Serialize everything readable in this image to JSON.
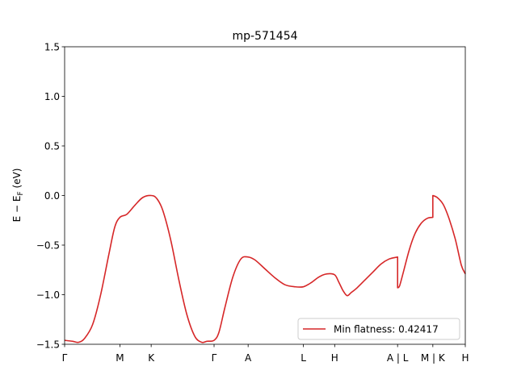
{
  "chart_data": {
    "type": "line",
    "title": "mp-571454",
    "ylabel": "E − E_F (eV)",
    "xlabel": "",
    "ylim": [
      -1.5,
      1.5
    ],
    "yticks": [
      -1.5,
      -1.0,
      -0.5,
      0.0,
      0.5,
      1.0,
      1.5
    ],
    "ytick_labels": [
      "−1.5",
      "−1.0",
      "−0.5",
      "0.0",
      "0.5",
      "1.0",
      "1.5"
    ],
    "xlim": [
      0,
      10
    ],
    "xticks": [
      {
        "pos": 0.0,
        "label": "Γ"
      },
      {
        "pos": 1.38,
        "label": "M"
      },
      {
        "pos": 2.16,
        "label": "K"
      },
      {
        "pos": 3.73,
        "label": "Γ"
      },
      {
        "pos": 4.58,
        "label": "A"
      },
      {
        "pos": 5.96,
        "label": "L"
      },
      {
        "pos": 6.74,
        "label": "H"
      },
      {
        "pos": 8.31,
        "label": "A | L"
      },
      {
        "pos": 9.19,
        "label": "M | K"
      },
      {
        "pos": 10.0,
        "label": "H"
      }
    ],
    "grid": false,
    "legend_position": "lower-right",
    "series": [
      {
        "name": "Min flatness: 0.42417",
        "color": "#d62728",
        "x": [
          0.0,
          0.2,
          0.35,
          0.5,
          0.7,
          0.9,
          1.1,
          1.25,
          1.38,
          1.55,
          1.75,
          1.95,
          2.16,
          2.3,
          2.45,
          2.65,
          2.85,
          3.05,
          3.25,
          3.42,
          3.55,
          3.73,
          3.85,
          4.0,
          4.2,
          4.4,
          4.58,
          4.75,
          5.0,
          5.25,
          5.5,
          5.75,
          5.96,
          6.15,
          6.35,
          6.55,
          6.74,
          6.85,
          6.95,
          7.05,
          7.15,
          7.3,
          7.5,
          7.7,
          7.9,
          8.1,
          8.31,
          8.31,
          8.36,
          8.45,
          8.6,
          8.75,
          8.9,
          9.05,
          9.19,
          9.19,
          9.3,
          9.45,
          9.6,
          9.75,
          9.9,
          10.0
        ],
        "y": [
          -1.46,
          -1.47,
          -1.48,
          -1.44,
          -1.3,
          -1.0,
          -0.6,
          -0.32,
          -0.22,
          -0.19,
          -0.1,
          -0.02,
          0.0,
          -0.03,
          -0.15,
          -0.45,
          -0.85,
          -1.2,
          -1.42,
          -1.48,
          -1.47,
          -1.46,
          -1.38,
          -1.13,
          -0.82,
          -0.64,
          -0.62,
          -0.65,
          -0.74,
          -0.83,
          -0.9,
          -0.92,
          -0.92,
          -0.88,
          -0.82,
          -0.79,
          -0.8,
          -0.88,
          -0.96,
          -1.01,
          -0.98,
          -0.93,
          -0.85,
          -0.77,
          -0.69,
          -0.64,
          -0.62,
          -0.93,
          -0.91,
          -0.78,
          -0.55,
          -0.38,
          -0.28,
          -0.23,
          -0.22,
          0.0,
          -0.02,
          -0.09,
          -0.24,
          -0.44,
          -0.7,
          -0.79
        ]
      }
    ]
  }
}
